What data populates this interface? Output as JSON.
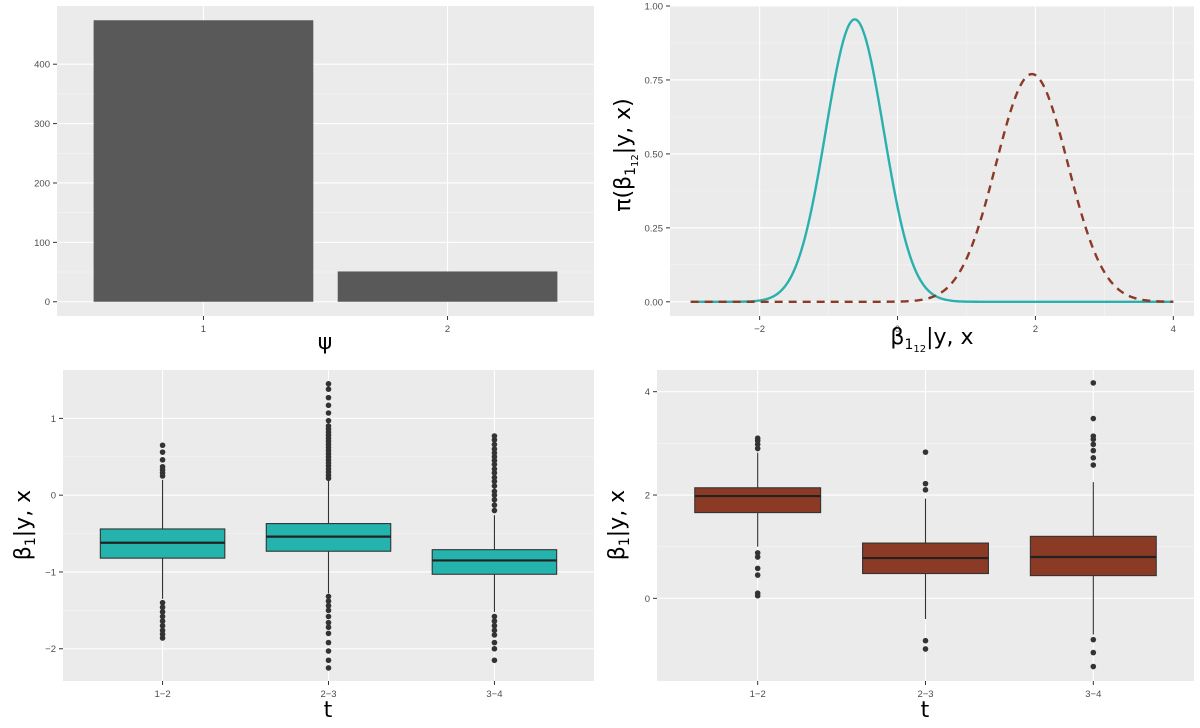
{
  "chart_data": [
    {
      "id": "counts",
      "type": "bar",
      "title": "",
      "xlabel": "ψ",
      "ylabel": "",
      "categories": [
        "1",
        "2"
      ],
      "values": [
        474,
        51
      ],
      "ylim": [
        -24,
        498
      ],
      "yticks": [
        0,
        100,
        200,
        300,
        400
      ]
    },
    {
      "id": "density",
      "type": "line",
      "title": "",
      "xlabel_main": "β",
      "xlabel_sub": "1",
      "xlabel_subsub": "12",
      "xlabel_tail": "|y, x",
      "ylabel_pre": "π(β",
      "ylabel_sub": "1",
      "ylabel_subsub": "12",
      "ylabel_tail": "|y, x)",
      "xlim": [
        -3.3,
        4.3
      ],
      "ylim": [
        -0.048,
        1.0
      ],
      "xticks": [
        -2,
        0,
        2,
        4
      ],
      "yticks": [
        0.0,
        0.25,
        0.5,
        0.75,
        1.0
      ],
      "ytick_labels": [
        "0.00",
        "0.25",
        "0.50",
        "0.75",
        "1.00"
      ],
      "series": [
        {
          "name": "solid",
          "color": "#2ab0ad",
          "dash": "none",
          "mean": -0.62,
          "sd": 0.42,
          "peak": 0.955,
          "x_from": -3.0,
          "x_to": 4.0
        },
        {
          "name": "dashed",
          "color": "#8b3a26",
          "dash": "8,6",
          "mean": 1.95,
          "sd": 0.52,
          "peak": 0.77,
          "x_from": -3.0,
          "x_to": 4.0
        }
      ]
    },
    {
      "id": "box-teal",
      "type": "box",
      "title": "",
      "xlabel": "t",
      "ylabel_pre": "β",
      "ylabel_sub": "1",
      "ylabel_tail": "|y, x",
      "fill": "#24b3ad",
      "categories": [
        "1−2",
        "2−3",
        "3−4"
      ],
      "ylim": [
        -2.42,
        1.63
      ],
      "yticks": [
        -2,
        -1,
        0,
        1
      ],
      "ytick_labels": [
        "−2",
        "−1",
        "0",
        "1"
      ],
      "boxes": [
        {
          "q1": -0.82,
          "median": -0.62,
          "q3": -0.44,
          "lower": -1.35,
          "upper": 0.2,
          "outliers": [
            0.25,
            0.29,
            0.33,
            0.37,
            0.46,
            0.56,
            0.65,
            -1.4,
            -1.46,
            -1.52,
            -1.58,
            -1.64,
            -1.7,
            -1.76,
            -1.81,
            -1.86
          ]
        },
        {
          "q1": -0.73,
          "median": -0.54,
          "q3": -0.37,
          "lower": -1.28,
          "upper": 0.2,
          "outliers": [
            0.22,
            0.26,
            0.3,
            0.34,
            0.38,
            0.42,
            0.46,
            0.5,
            0.54,
            0.58,
            0.62,
            0.66,
            0.7,
            0.74,
            0.78,
            0.82,
            0.86,
            0.9,
            0.97,
            1.07,
            1.17,
            1.27,
            1.38,
            1.45,
            -1.32,
            -1.38,
            -1.44,
            -1.5,
            -1.58,
            -1.66,
            -1.72,
            -1.8,
            -1.92,
            -2.03,
            -2.15,
            -2.25
          ]
        },
        {
          "q1": -1.03,
          "median": -0.85,
          "q3": -0.71,
          "lower": -1.52,
          "upper": -0.26,
          "outliers": [
            -0.2,
            -0.13,
            -0.06,
            0.0,
            0.05,
            0.12,
            0.18,
            0.23,
            0.29,
            0.34,
            0.4,
            0.45,
            0.5,
            0.55,
            0.6,
            0.66,
            0.72,
            0.77,
            -1.58,
            -1.64,
            -1.7,
            -1.76,
            -1.82,
            -1.92,
            -2.0,
            -2.15
          ]
        }
      ]
    },
    {
      "id": "box-red",
      "type": "box",
      "title": "",
      "xlabel": "t",
      "ylabel_pre": "β",
      "ylabel_sub": "1",
      "ylabel_tail": "|y, x",
      "fill": "#8b3a26",
      "categories": [
        "1−2",
        "2−3",
        "3−4"
      ],
      "ylim": [
        -1.6,
        4.42
      ],
      "yticks": [
        0,
        2,
        4
      ],
      "ytick_labels": [
        "0",
        "2",
        "4"
      ],
      "boxes": [
        {
          "q1": 1.66,
          "median": 1.98,
          "q3": 2.14,
          "lower": 1.0,
          "upper": 2.82,
          "outliers": [
            2.9,
            2.98,
            3.05,
            3.1,
            0.88,
            0.8,
            0.58,
            0.45,
            0.1,
            0.05
          ]
        },
        {
          "q1": 0.48,
          "median": 0.78,
          "q3": 1.07,
          "lower": -0.4,
          "upper": 1.93,
          "outliers": [
            2.1,
            2.22,
            2.83,
            -0.82,
            -0.98
          ]
        },
        {
          "q1": 0.44,
          "median": 0.8,
          "q3": 1.2,
          "lower": -0.7,
          "upper": 2.25,
          "outliers": [
            2.58,
            2.72,
            2.86,
            2.98,
            3.08,
            3.14,
            3.48,
            4.17,
            -0.8,
            -1.05,
            -1.32
          ]
        }
      ]
    }
  ]
}
